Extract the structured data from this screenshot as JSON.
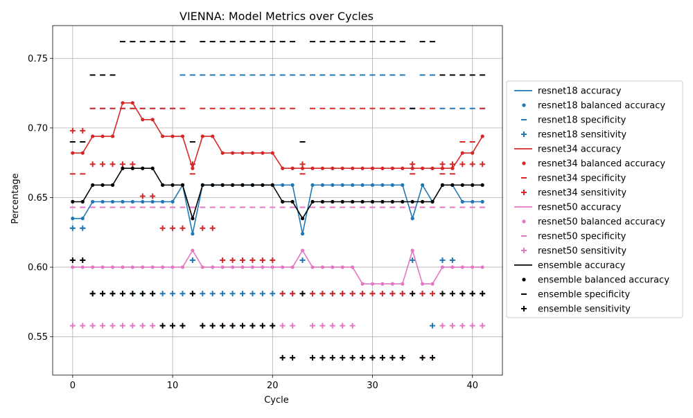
{
  "chart_data": {
    "type": "line",
    "title": "VIENNA: Model Metrics over Cycles",
    "xlabel": "Cycle",
    "ylabel": "Percentage",
    "xlim": [
      -2,
      43
    ],
    "ylim": [
      0.5225,
      0.7735
    ],
    "xticks": [
      0,
      10,
      20,
      30,
      40
    ],
    "yticks": [
      0.55,
      0.6,
      0.65,
      0.7,
      0.75
    ],
    "ytick_labels": [
      "0.55",
      "0.60",
      "0.65",
      "0.70",
      "0.75"
    ],
    "grid": true,
    "legend_position": "right-outside",
    "x": [
      0,
      1,
      2,
      3,
      4,
      5,
      6,
      7,
      8,
      9,
      10,
      11,
      12,
      13,
      14,
      15,
      16,
      17,
      18,
      19,
      20,
      21,
      22,
      23,
      24,
      25,
      26,
      27,
      28,
      29,
      30,
      31,
      32,
      33,
      34,
      35,
      36,
      37,
      38,
      39,
      40,
      41
    ],
    "models": [
      {
        "name": "resnet18",
        "color": "#1f77b4",
        "accuracy": [
          0.635,
          0.635,
          0.647,
          0.647,
          0.647,
          0.647,
          0.647,
          0.647,
          0.647,
          0.647,
          0.647,
          0.659,
          0.624,
          0.659,
          0.659,
          0.659,
          0.659,
          0.659,
          0.659,
          0.659,
          0.659,
          0.659,
          0.659,
          0.624,
          0.659,
          0.659,
          0.659,
          0.659,
          0.659,
          0.659,
          0.659,
          0.659,
          0.659,
          0.659,
          0.635,
          0.659,
          0.647,
          0.659,
          0.659,
          0.647,
          0.647,
          0.647
        ],
        "specificity": [
          0.628,
          0.628,
          0.714,
          0.714,
          0.714,
          0.714,
          0.714,
          0.714,
          0.714,
          0.714,
          0.714,
          0.738,
          0.738,
          0.738,
          0.738,
          0.738,
          0.738,
          0.738,
          0.738,
          0.738,
          0.738,
          0.738,
          0.738,
          0.738,
          0.738,
          0.738,
          0.738,
          0.738,
          0.738,
          0.738,
          0.738,
          0.738,
          0.738,
          0.738,
          0.714,
          0.738,
          0.738,
          0.714,
          0.714,
          0.714,
          0.714,
          0.714
        ],
        "sensitivity": [
          0.628,
          0.628,
          0.581,
          0.581,
          0.581,
          0.581,
          0.581,
          0.581,
          0.581,
          0.581,
          0.581,
          0.581,
          0.605,
          0.581,
          0.581,
          0.581,
          0.581,
          0.581,
          0.581,
          0.581,
          0.581,
          0.581,
          0.581,
          0.605,
          0.581,
          0.581,
          0.581,
          0.581,
          0.581,
          0.581,
          0.581,
          0.581,
          0.581,
          0.581,
          0.605,
          0.581,
          0.558,
          0.605,
          0.605,
          0.581,
          0.581,
          0.581
        ]
      },
      {
        "name": "resnet34",
        "color": "#d62728",
        "accuracy": [
          0.682,
          0.682,
          0.694,
          0.694,
          0.694,
          0.718,
          0.718,
          0.706,
          0.706,
          0.694,
          0.694,
          0.694,
          0.671,
          0.694,
          0.694,
          0.682,
          0.682,
          0.682,
          0.682,
          0.682,
          0.682,
          0.671,
          0.671,
          0.671,
          0.671,
          0.671,
          0.671,
          0.671,
          0.671,
          0.671,
          0.671,
          0.671,
          0.671,
          0.671,
          0.671,
          0.671,
          0.671,
          0.671,
          0.671,
          0.682,
          0.682,
          0.694
        ],
        "specificity": [
          0.667,
          0.667,
          0.714,
          0.714,
          0.714,
          0.714,
          0.714,
          0.714,
          0.714,
          0.714,
          0.714,
          0.714,
          0.667,
          0.714,
          0.714,
          0.714,
          0.714,
          0.714,
          0.714,
          0.714,
          0.714,
          0.714,
          0.714,
          0.667,
          0.714,
          0.714,
          0.714,
          0.714,
          0.714,
          0.714,
          0.714,
          0.714,
          0.714,
          0.714,
          0.667,
          0.714,
          0.714,
          0.667,
          0.667,
          0.69,
          0.69,
          0.714
        ],
        "sensitivity": [
          0.698,
          0.698,
          0.674,
          0.674,
          0.674,
          0.674,
          0.674,
          0.651,
          0.651,
          0.628,
          0.628,
          0.628,
          0.674,
          0.628,
          0.628,
          0.605,
          0.605,
          0.605,
          0.605,
          0.605,
          0.605,
          0.581,
          0.581,
          0.674,
          0.581,
          0.581,
          0.581,
          0.581,
          0.581,
          0.581,
          0.581,
          0.581,
          0.581,
          0.581,
          0.674,
          0.581,
          0.581,
          0.674,
          0.674,
          0.674,
          0.674,
          0.674
        ]
      },
      {
        "name": "resnet50",
        "color": "#e377c2",
        "accuracy": [
          0.6,
          0.6,
          0.6,
          0.6,
          0.6,
          0.6,
          0.6,
          0.6,
          0.6,
          0.6,
          0.6,
          0.6,
          0.612,
          0.6,
          0.6,
          0.6,
          0.6,
          0.6,
          0.6,
          0.6,
          0.6,
          0.6,
          0.6,
          0.612,
          0.6,
          0.6,
          0.6,
          0.6,
          0.6,
          0.588,
          0.588,
          0.588,
          0.588,
          0.588,
          0.612,
          0.588,
          0.588,
          0.6,
          0.6,
          0.6,
          0.6,
          0.6
        ],
        "specificity": [
          0.643,
          0.643,
          0.643,
          0.643,
          0.643,
          0.643,
          0.643,
          0.643,
          0.643,
          0.643,
          0.643,
          0.643,
          0.643,
          0.643,
          0.643,
          0.643,
          0.643,
          0.643,
          0.643,
          0.643,
          0.643,
          0.643,
          0.643,
          0.643,
          0.643,
          0.643,
          0.643,
          0.643,
          0.643,
          0.643,
          0.643,
          0.643,
          0.643,
          0.643,
          0.643,
          0.643,
          0.643,
          0.643,
          0.643,
          0.643,
          0.643,
          0.643
        ],
        "sensitivity": [
          0.558,
          0.558,
          0.558,
          0.558,
          0.558,
          0.558,
          0.558,
          0.558,
          0.558,
          0.558,
          0.558,
          0.558,
          0.581,
          0.558,
          0.558,
          0.558,
          0.558,
          0.558,
          0.558,
          0.558,
          0.558,
          0.558,
          0.558,
          0.581,
          0.558,
          0.558,
          0.558,
          0.558,
          0.558,
          0.535,
          0.535,
          0.535,
          0.535,
          0.535,
          0.581,
          0.535,
          0.535,
          0.558,
          0.558,
          0.558,
          0.558,
          0.558
        ]
      },
      {
        "name": "ensemble",
        "color": "#000000",
        "accuracy": [
          0.647,
          0.647,
          0.659,
          0.659,
          0.659,
          0.671,
          0.671,
          0.671,
          0.671,
          0.659,
          0.659,
          0.659,
          0.635,
          0.659,
          0.659,
          0.659,
          0.659,
          0.659,
          0.659,
          0.659,
          0.659,
          0.647,
          0.647,
          0.635,
          0.647,
          0.647,
          0.647,
          0.647,
          0.647,
          0.647,
          0.647,
          0.647,
          0.647,
          0.647,
          0.647,
          0.647,
          0.647,
          0.659,
          0.659,
          0.659,
          0.659,
          0.659
        ],
        "specificity": [
          0.69,
          0.69,
          0.738,
          0.738,
          0.738,
          0.762,
          0.762,
          0.762,
          0.762,
          0.762,
          0.762,
          0.762,
          0.69,
          0.762,
          0.762,
          0.762,
          0.762,
          0.762,
          0.762,
          0.762,
          0.762,
          0.762,
          0.762,
          0.69,
          0.762,
          0.762,
          0.762,
          0.762,
          0.762,
          0.762,
          0.762,
          0.762,
          0.762,
          0.762,
          0.714,
          0.762,
          0.762,
          0.738,
          0.738,
          0.738,
          0.738,
          0.738
        ],
        "sensitivity": [
          0.605,
          0.605,
          0.581,
          0.581,
          0.581,
          0.581,
          0.581,
          0.581,
          0.581,
          0.558,
          0.558,
          0.558,
          0.581,
          0.558,
          0.558,
          0.558,
          0.558,
          0.558,
          0.558,
          0.558,
          0.558,
          0.535,
          0.535,
          0.581,
          0.535,
          0.535,
          0.535,
          0.535,
          0.535,
          0.535,
          0.535,
          0.535,
          0.535,
          0.535,
          0.581,
          0.535,
          0.535,
          0.581,
          0.581,
          0.581,
          0.581,
          0.581
        ]
      }
    ],
    "legend": [
      {
        "label": "resnet18 accuracy",
        "marker": "line",
        "color": "#1f77b4"
      },
      {
        "label": "resnet18 balanced accuracy",
        "marker": "dot",
        "color": "#1f77b4"
      },
      {
        "label": "resnet18 specificity",
        "marker": "dash",
        "color": "#1f77b4"
      },
      {
        "label": "resnet18 sensitivity",
        "marker": "plus",
        "color": "#1f77b4"
      },
      {
        "label": "resnet34 accuracy",
        "marker": "line",
        "color": "#d62728"
      },
      {
        "label": "resnet34 balanced accuracy",
        "marker": "dot",
        "color": "#d62728"
      },
      {
        "label": "resnet34 specificity",
        "marker": "dash",
        "color": "#d62728"
      },
      {
        "label": "resnet34 sensitivity",
        "marker": "plus",
        "color": "#d62728"
      },
      {
        "label": "resnet50 accuracy",
        "marker": "line",
        "color": "#e377c2"
      },
      {
        "label": "resnet50 balanced accuracy",
        "marker": "dot",
        "color": "#e377c2"
      },
      {
        "label": "resnet50 specificity",
        "marker": "dash",
        "color": "#e377c2"
      },
      {
        "label": "resnet50 sensitivity",
        "marker": "plus",
        "color": "#e377c2"
      },
      {
        "label": "ensemble accuracy",
        "marker": "line",
        "color": "#000000"
      },
      {
        "label": "ensemble balanced accuracy",
        "marker": "dot",
        "color": "#000000"
      },
      {
        "label": "ensemble specificity",
        "marker": "dash",
        "color": "#000000"
      },
      {
        "label": "ensemble sensitivity",
        "marker": "plus",
        "color": "#000000"
      }
    ]
  }
}
